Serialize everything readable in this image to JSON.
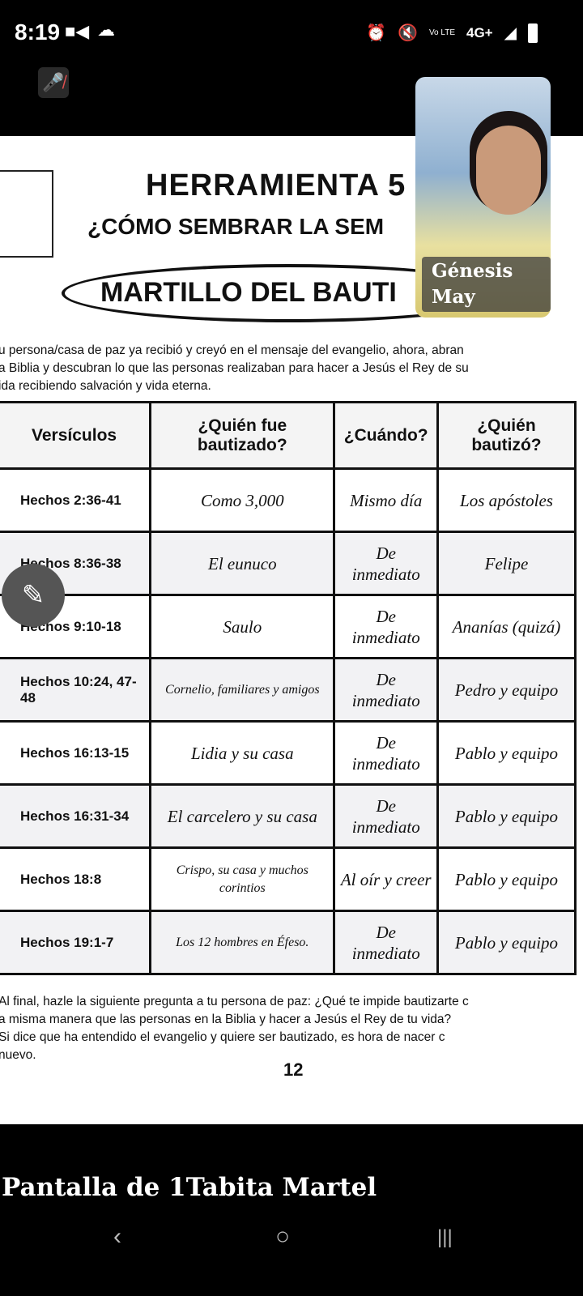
{
  "status_bar": {
    "time": "8:19",
    "icons": [
      "video-icon",
      "cloud-icon",
      "alarm-icon",
      "mute-icon",
      "volte-icon",
      "signal-icon",
      "battery-icon"
    ],
    "network": "4G+",
    "volte": "Vo LTE"
  },
  "participant": {
    "name": "Génesis May",
    "mic": "muted"
  },
  "document": {
    "title": "HERRAMIENTA 5",
    "subtitle": "¿CÓMO SEMBRAR LA SEM",
    "banner": "MARTILLO DEL BAUTI",
    "intro": [
      "u persona/casa de paz ya recibió y creyó en el mensaje del evangelio, ahora, abran",
      "a Biblia y descubran lo que las personas realizaban para hacer a Jesús el Rey de su",
      "ida recibiendo salvación y vida eterna."
    ],
    "table": {
      "headers": [
        "Versículos",
        "¿Quién fue bautizado?",
        "¿Cuándo?",
        "¿Quién bautizó?"
      ],
      "rows": [
        [
          "Hechos 2:36-41",
          "Como 3,000",
          "Mismo día",
          "Los apóstoles"
        ],
        [
          "Hechos 8:36-38",
          "El eunuco",
          "De inmediato",
          "Felipe"
        ],
        [
          "Hechos 9:10-18",
          "Saulo",
          "De inmediato",
          "Ananías (quizá)"
        ],
        [
          "Hechos 10:24, 47-48",
          "Cornelio, familiares y amigos",
          "De inmediato",
          "Pedro y equipo"
        ],
        [
          "Hechos 16:13-15",
          "Lidia y su casa",
          "De inmediato",
          "Pablo y equipo"
        ],
        [
          "Hechos 16:31-34",
          "El carcelero y su casa",
          "De inmediato",
          "Pablo y equipo"
        ],
        [
          "Hechos 18:8",
          "Crispo, su casa y muchos corintios",
          "Al oír y creer",
          "Pablo y equipo"
        ],
        [
          "Hechos 19:1-7",
          "Los 12 hombres en Éfeso.",
          "De inmediato",
          "Pablo y equipo"
        ]
      ]
    },
    "footer": [
      "Al final, hazle la siguiente pregunta a tu persona de paz: ¿Qué te impide bautizarte c",
      "a misma manera que las personas en la Biblia y hacer a Jesús el Rey de tu vida?",
      "Si dice que ha entendido el evangelio y quiere ser bautizado, es hora de nacer c",
      "nuevo."
    ],
    "page_number": "12"
  },
  "share_label": "Pantalla de 1Tabita Martel"
}
